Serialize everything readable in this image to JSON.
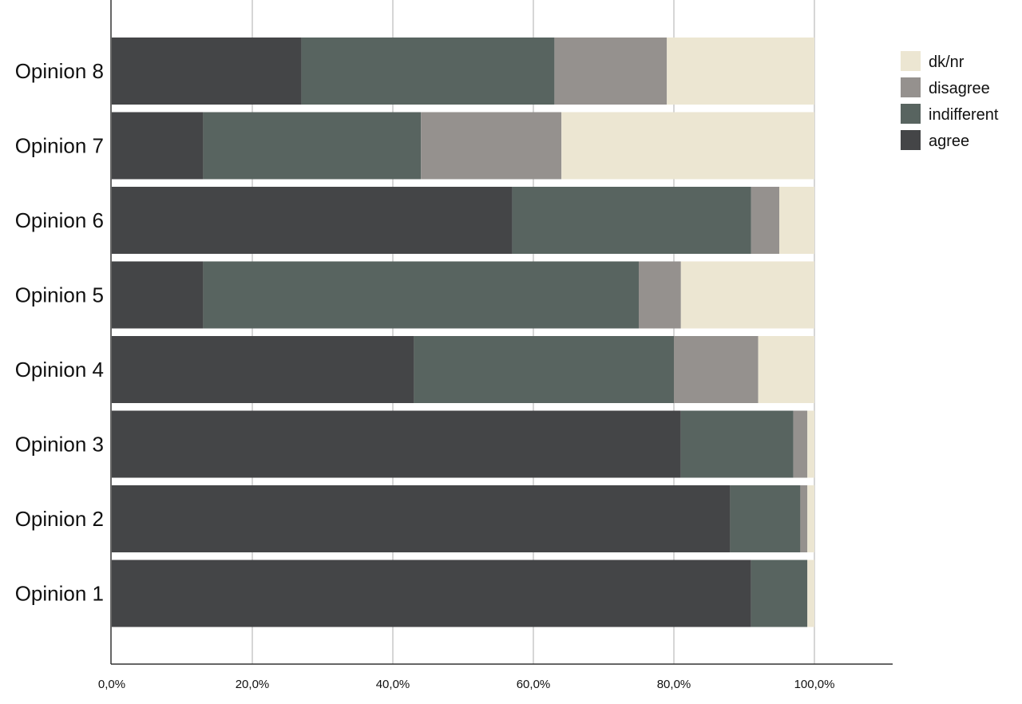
{
  "chart_data": {
    "type": "bar",
    "orientation": "horizontal",
    "stacked": true,
    "categories": [
      "Opinion 1",
      "Opinion 2",
      "Opinion 3",
      "Opinion 4",
      "Opinion 5",
      "Opinion 6",
      "Opinion 7",
      "Opinion 8"
    ],
    "series": [
      {
        "name": "agree",
        "color": "#444547",
        "values": [
          91,
          88,
          81,
          43,
          13,
          57,
          13,
          27
        ]
      },
      {
        "name": "indifferent",
        "color": "#586460",
        "values": [
          8,
          10,
          16,
          37,
          62,
          34,
          31,
          36
        ]
      },
      {
        "name": "disagree",
        "color": "#95918e",
        "values": [
          0,
          1,
          2,
          12,
          6,
          4,
          20,
          16
        ]
      },
      {
        "name": "dk/nr",
        "color": "#ece6d2",
        "values": [
          1,
          1,
          1,
          8,
          19,
          5,
          36,
          21
        ]
      }
    ],
    "xlim": [
      0,
      100
    ],
    "xticks": [
      0,
      20,
      40,
      60,
      80,
      100
    ],
    "xtick_labels": [
      "0,0%",
      "20,0%",
      "40,0%",
      "60,0%",
      "80,0%",
      "100,0%"
    ],
    "grid": "vertical",
    "legend_position": "top-right",
    "legend_order": [
      "dk/nr",
      "disagree",
      "indifferent",
      "agree"
    ],
    "title": "",
    "xlabel": "",
    "ylabel": ""
  }
}
